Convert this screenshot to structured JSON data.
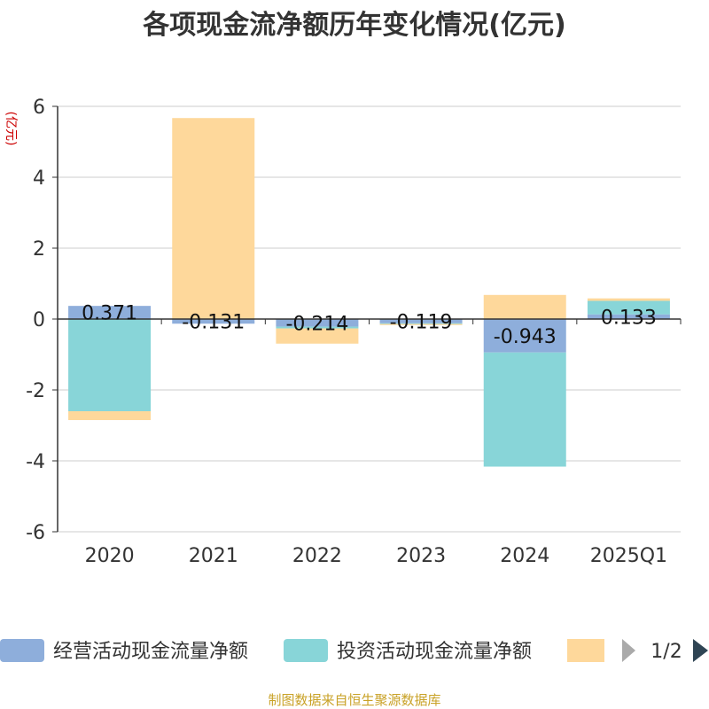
{
  "chart_data": {
    "type": "bar",
    "title": "各项现金流净额历年变化情况(亿元)",
    "ylabel": "(亿元)",
    "categories": [
      "2020",
      "2021",
      "2022",
      "2023",
      "2024",
      "2025Q1"
    ],
    "ylim": [
      -6,
      6
    ],
    "yticks": [
      6,
      4,
      2,
      0,
      -2,
      -4,
      -6
    ],
    "stacked": true,
    "grid": true,
    "legend_position": "bottom",
    "series": [
      {
        "name": "经营活动现金流量净额",
        "color": "#8eaedb",
        "values": [
          0.371,
          -0.131,
          -0.214,
          -0.119,
          -0.943,
          0.133
        ]
      },
      {
        "name": "投资活动现金流量净额",
        "color": "#88d5d8",
        "values": [
          -2.6,
          0.0,
          -0.05,
          -0.02,
          -3.22,
          0.38
        ]
      },
      {
        "name": "",
        "color": "#fed89b",
        "values": [
          -0.25,
          5.67,
          -0.43,
          -0.03,
          0.68,
          0.07
        ]
      }
    ],
    "data_labels": [
      "0.371",
      "-0.131",
      "-0.214",
      "-0.119",
      "-0.943",
      "0.133"
    ]
  },
  "legend": {
    "page": "1/2",
    "prev_icon": "triangle-left",
    "next_icon": "triangle-right"
  },
  "source": "制图数据来自恒生聚源数据库"
}
